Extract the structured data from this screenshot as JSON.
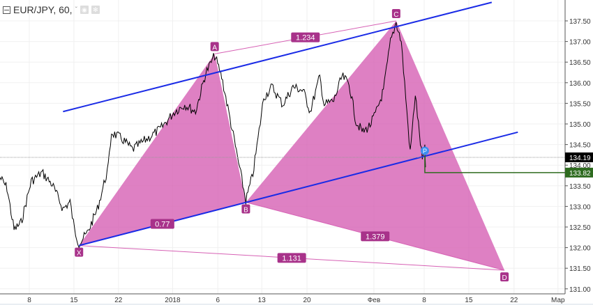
{
  "header": {
    "symbol": "EUR/JPY, 60,",
    "dropdown": "ˇ",
    "eye_icon": "eye-icon",
    "gear_icon": "gear-icon"
  },
  "chart_data": {
    "type": "line",
    "title": "EUR/JPY, 60",
    "x_unit": "days since Dec 8",
    "xlim": [
      -4.6,
      84.3
    ],
    "ylim": [
      130.9,
      138.0
    ],
    "x_ticks": [
      {
        "d": 0,
        "label": "8"
      },
      {
        "d": 7,
        "label": "15"
      },
      {
        "d": 14,
        "label": "22"
      },
      {
        "d": 22.5,
        "label": "2018"
      },
      {
        "d": 29.6,
        "label": "6"
      },
      {
        "d": 36.5,
        "label": "13"
      },
      {
        "d": 43.6,
        "label": "20"
      },
      {
        "d": 54.1,
        "label": "Фев"
      },
      {
        "d": 62,
        "label": "8"
      },
      {
        "d": 69,
        "label": "15"
      },
      {
        "d": 76.1,
        "label": "22"
      },
      {
        "d": 83,
        "label": "Мар"
      }
    ],
    "y_ticks": [
      "137.50",
      "137.00",
      "136.50",
      "136.00",
      "135.50",
      "135.00",
      "134.50",
      "134.00",
      "133.50",
      "133.00",
      "132.50",
      "132.00",
      "131.50",
      "131.00"
    ],
    "price_series": [
      [
        -4.6,
        133.7
      ],
      [
        -3.5,
        133.45
      ],
      [
        -2.4,
        132.43
      ],
      [
        -1.3,
        132.6
      ],
      [
        0.3,
        133.61
      ],
      [
        2.0,
        133.82
      ],
      [
        3.6,
        133.53
      ],
      [
        5.3,
        132.94
      ],
      [
        6.4,
        133.11
      ],
      [
        7.1,
        132.43
      ],
      [
        7.8,
        132.1
      ],
      [
        9.1,
        132.35
      ],
      [
        10.7,
        132.94
      ],
      [
        12.4,
        133.95
      ],
      [
        12.9,
        134.8
      ],
      [
        14.6,
        134.63
      ],
      [
        16.2,
        134.38
      ],
      [
        18.4,
        134.63
      ],
      [
        20.6,
        134.88
      ],
      [
        22.8,
        135.3
      ],
      [
        24.4,
        135.47
      ],
      [
        26.1,
        135.3
      ],
      [
        27.7,
        136.23
      ],
      [
        29.1,
        136.66
      ],
      [
        30.2,
        136.15
      ],
      [
        31.5,
        135.14
      ],
      [
        33.2,
        133.78
      ],
      [
        34.0,
        133.14
      ],
      [
        35.1,
        133.78
      ],
      [
        35.9,
        134.63
      ],
      [
        36.8,
        135.64
      ],
      [
        38.1,
        135.9
      ],
      [
        39.8,
        135.47
      ],
      [
        41.4,
        135.9
      ],
      [
        43.0,
        135.81
      ],
      [
        44.1,
        135.3
      ],
      [
        45.6,
        136.15
      ],
      [
        46.3,
        135.47
      ],
      [
        47.8,
        135.56
      ],
      [
        49.1,
        136.15
      ],
      [
        50.2,
        135.98
      ],
      [
        51.3,
        135.05
      ],
      [
        52.4,
        134.8
      ],
      [
        53.5,
        134.97
      ],
      [
        54.5,
        135.3
      ],
      [
        55.6,
        135.81
      ],
      [
        56.7,
        136.99
      ],
      [
        57.6,
        137.47
      ],
      [
        58.4,
        136.99
      ],
      [
        59.1,
        135.64
      ],
      [
        59.8,
        134.29
      ],
      [
        60.6,
        135.73
      ],
      [
        61.1,
        134.97
      ],
      [
        61.7,
        134.12
      ],
      [
        62.1,
        134.38
      ],
      [
        62.2,
        133.95
      ]
    ],
    "pattern": {
      "points": [
        {
          "label": "X",
          "d": 7.8,
          "p": 132.05
        },
        {
          "label": "A",
          "d": 29.1,
          "p": 136.7
        },
        {
          "label": "B",
          "d": 34.0,
          "p": 133.1
        },
        {
          "label": "C",
          "d": 57.6,
          "p": 137.5
        },
        {
          "label": "D",
          "d": 74.6,
          "p": 131.45
        }
      ],
      "ratios": [
        {
          "from": 0,
          "to": 2,
          "value": "0.77"
        },
        {
          "from": 1,
          "to": 3,
          "value": "1.234"
        },
        {
          "from": 2,
          "to": 4,
          "value": "1.379"
        },
        {
          "from": 0,
          "to": 4,
          "value": "1.131"
        }
      ],
      "color": "#d660b4"
    },
    "trend_lines": [
      {
        "d1": 5.3,
        "p1": 135.3,
        "d2": 72.6,
        "p2": 137.95
      },
      {
        "d1": 7.8,
        "p1": 132.05,
        "d2": 76.7,
        "p2": 134.8
      }
    ],
    "trend_color": "#1a2be6",
    "marker": {
      "label": "P",
      "d": 62.1,
      "p": 134.35,
      "color": "#3d8ef0"
    },
    "last_price": {
      "value": "134.19",
      "p": 134.19,
      "color": "#000000"
    },
    "target_price": {
      "value": "133.82",
      "p": 133.82,
      "color": "#2e6b1f"
    }
  }
}
